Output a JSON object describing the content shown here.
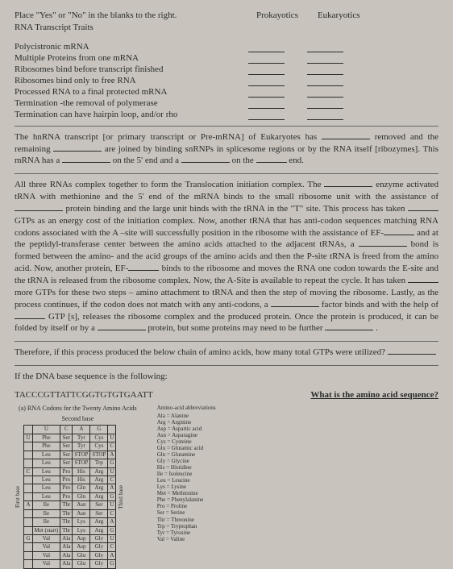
{
  "instruction": "Place \"Yes\" or \"No\" in the blanks to the right.",
  "subheading": "RNA Transcript Traits",
  "columns": {
    "prok": "Prokayotics",
    "euk": "Eukaryotics"
  },
  "traits": [
    "Polycistronic mRNA",
    "Multiple Proteins from one mRNA",
    "Ribosomes bind before transcript finished",
    "Ribosomes bind only to free RNA",
    "Processed RNA to a final protected mRNA",
    "Termination -the removal of polymerase",
    "Termination can have hairpin loop, and/or rho"
  ],
  "p1": {
    "a": "The hnRNA transcript [or primary transcript or Pre-mRNA] of Eukaryotes has ",
    "b": " removed and the remaining ",
    "c": " are joined by binding snRNPs in splicesome regions or by the RNA itself [ribozymes]. This mRNA has a ",
    "d": " on the 5' end and a ",
    "e": " on the ",
    "f": " end."
  },
  "p2": {
    "a": "All three RNAs complex together to form the Translocation initiation complex. The ",
    "b": " enzyme activated tRNA with methionine and the 5' end of the mRNA binds to the small ribosome unit with the assistance of ",
    "c": " protein binding and the large unit binds with the tRNA in the \"T\" site. This process has taken ",
    "d": " GTPs as an energy cost of the initiation complex. Now, another tRNA that has anti-codon sequences matching RNA codons associated with the A –site will successfully position in the ribosome with the assistance of EF-",
    "e": " and at the peptidyl-transferase center between the amino acids attached to the adjacent tRNAs, a ",
    "f": " bond is formed between the amino- and the acid groups of the amino acids and then the P-site tRNA is freed from the amino acid. Now, another protein, EF-",
    "g": " binds to the ribosome and moves the RNA one codon towards the E-site and the tRNA is released from the ribosome complex. Now, the A-Site is available to repeat the cycle. It has taken ",
    "h": " more GTPs for these two steps – amino attachment to tRNA and then the step of moving the ribosome. Lastly, as the process continues, if the codon does not match with any anti-codons, a ",
    "i": " factor binds and with the help of ",
    "j": " GTP [s], releases the ribosome complex and the produced protein. Once the protein is produced, it can be folded by itself or by a ",
    "k": " protein, but some proteins may need to be further ",
    "l": "."
  },
  "p3": {
    "a": "Therefore, if this process produced the below chain of amino acids, how many total GTPs were utilized? "
  },
  "p4": "If the DNA base sequence is the following:",
  "seq": "TACCCGTTATTCGGTGTGTGAATT",
  "q2": "What is the amino acid sequence?",
  "codon": {
    "title": "(a) RNA Codons for the Twenty Amino Acids",
    "second": "Second base",
    "first": "First base",
    "third": "Third base",
    "head": [
      "",
      "U",
      "C",
      "A",
      "G",
      ""
    ],
    "rows": [
      [
        "U",
        "Phe",
        "Ser",
        "Tyr",
        "Cys",
        "U"
      ],
      [
        "",
        "Phe",
        "Ser",
        "Tyr",
        "Cys",
        "C"
      ],
      [
        "",
        "Leu",
        "Ser",
        "STOP",
        "STOP",
        "A"
      ],
      [
        "",
        "Leu",
        "Ser",
        "STOP",
        "Trp",
        "G"
      ],
      [
        "C",
        "Leu",
        "Pro",
        "His",
        "Arg",
        "U"
      ],
      [
        "",
        "Leu",
        "Pro",
        "His",
        "Arg",
        "C"
      ],
      [
        "",
        "Leu",
        "Pro",
        "Gln",
        "Arg",
        "A"
      ],
      [
        "",
        "Leu",
        "Pro",
        "Gln",
        "Arg",
        "G"
      ],
      [
        "A",
        "Ile",
        "Thr",
        "Asn",
        "Ser",
        "U"
      ],
      [
        "",
        "Ile",
        "Thr",
        "Asn",
        "Ser",
        "C"
      ],
      [
        "",
        "Ile",
        "Thr",
        "Lys",
        "Arg",
        "A"
      ],
      [
        "",
        "Met (start)",
        "Thr",
        "Lys",
        "Arg",
        "G"
      ],
      [
        "G",
        "Val",
        "Ala",
        "Asp",
        "Gly",
        "U"
      ],
      [
        "",
        "Val",
        "Ala",
        "Asp",
        "Gly",
        "C"
      ],
      [
        "",
        "Val",
        "Ala",
        "Glu",
        "Gly",
        "A"
      ],
      [
        "",
        "Val",
        "Ala",
        "Glu",
        "Gly",
        "G"
      ]
    ]
  },
  "aa": {
    "title": "Amino-acid abbreviations",
    "list": [
      "Ala = Alanine",
      "Arg = Arginine",
      "Asp = Aspartic acid",
      "Asn = Asparagine",
      "Cys = Cysteine",
      "Glu = Glutamic acid",
      "Gln = Glutamine",
      "Gly = Glycine",
      "His = Histidine",
      "Ile = Isoleucine",
      "Leu = Leucine",
      "Lys = Lysine",
      "Met = Methionine",
      "Phe = Phenylalanine",
      "Pro = Proline",
      "Ser = Serine",
      "Thr = Threonine",
      "Trp = Tryptophan",
      "Tyr = Tyrosine",
      "Val = Valine"
    ]
  }
}
